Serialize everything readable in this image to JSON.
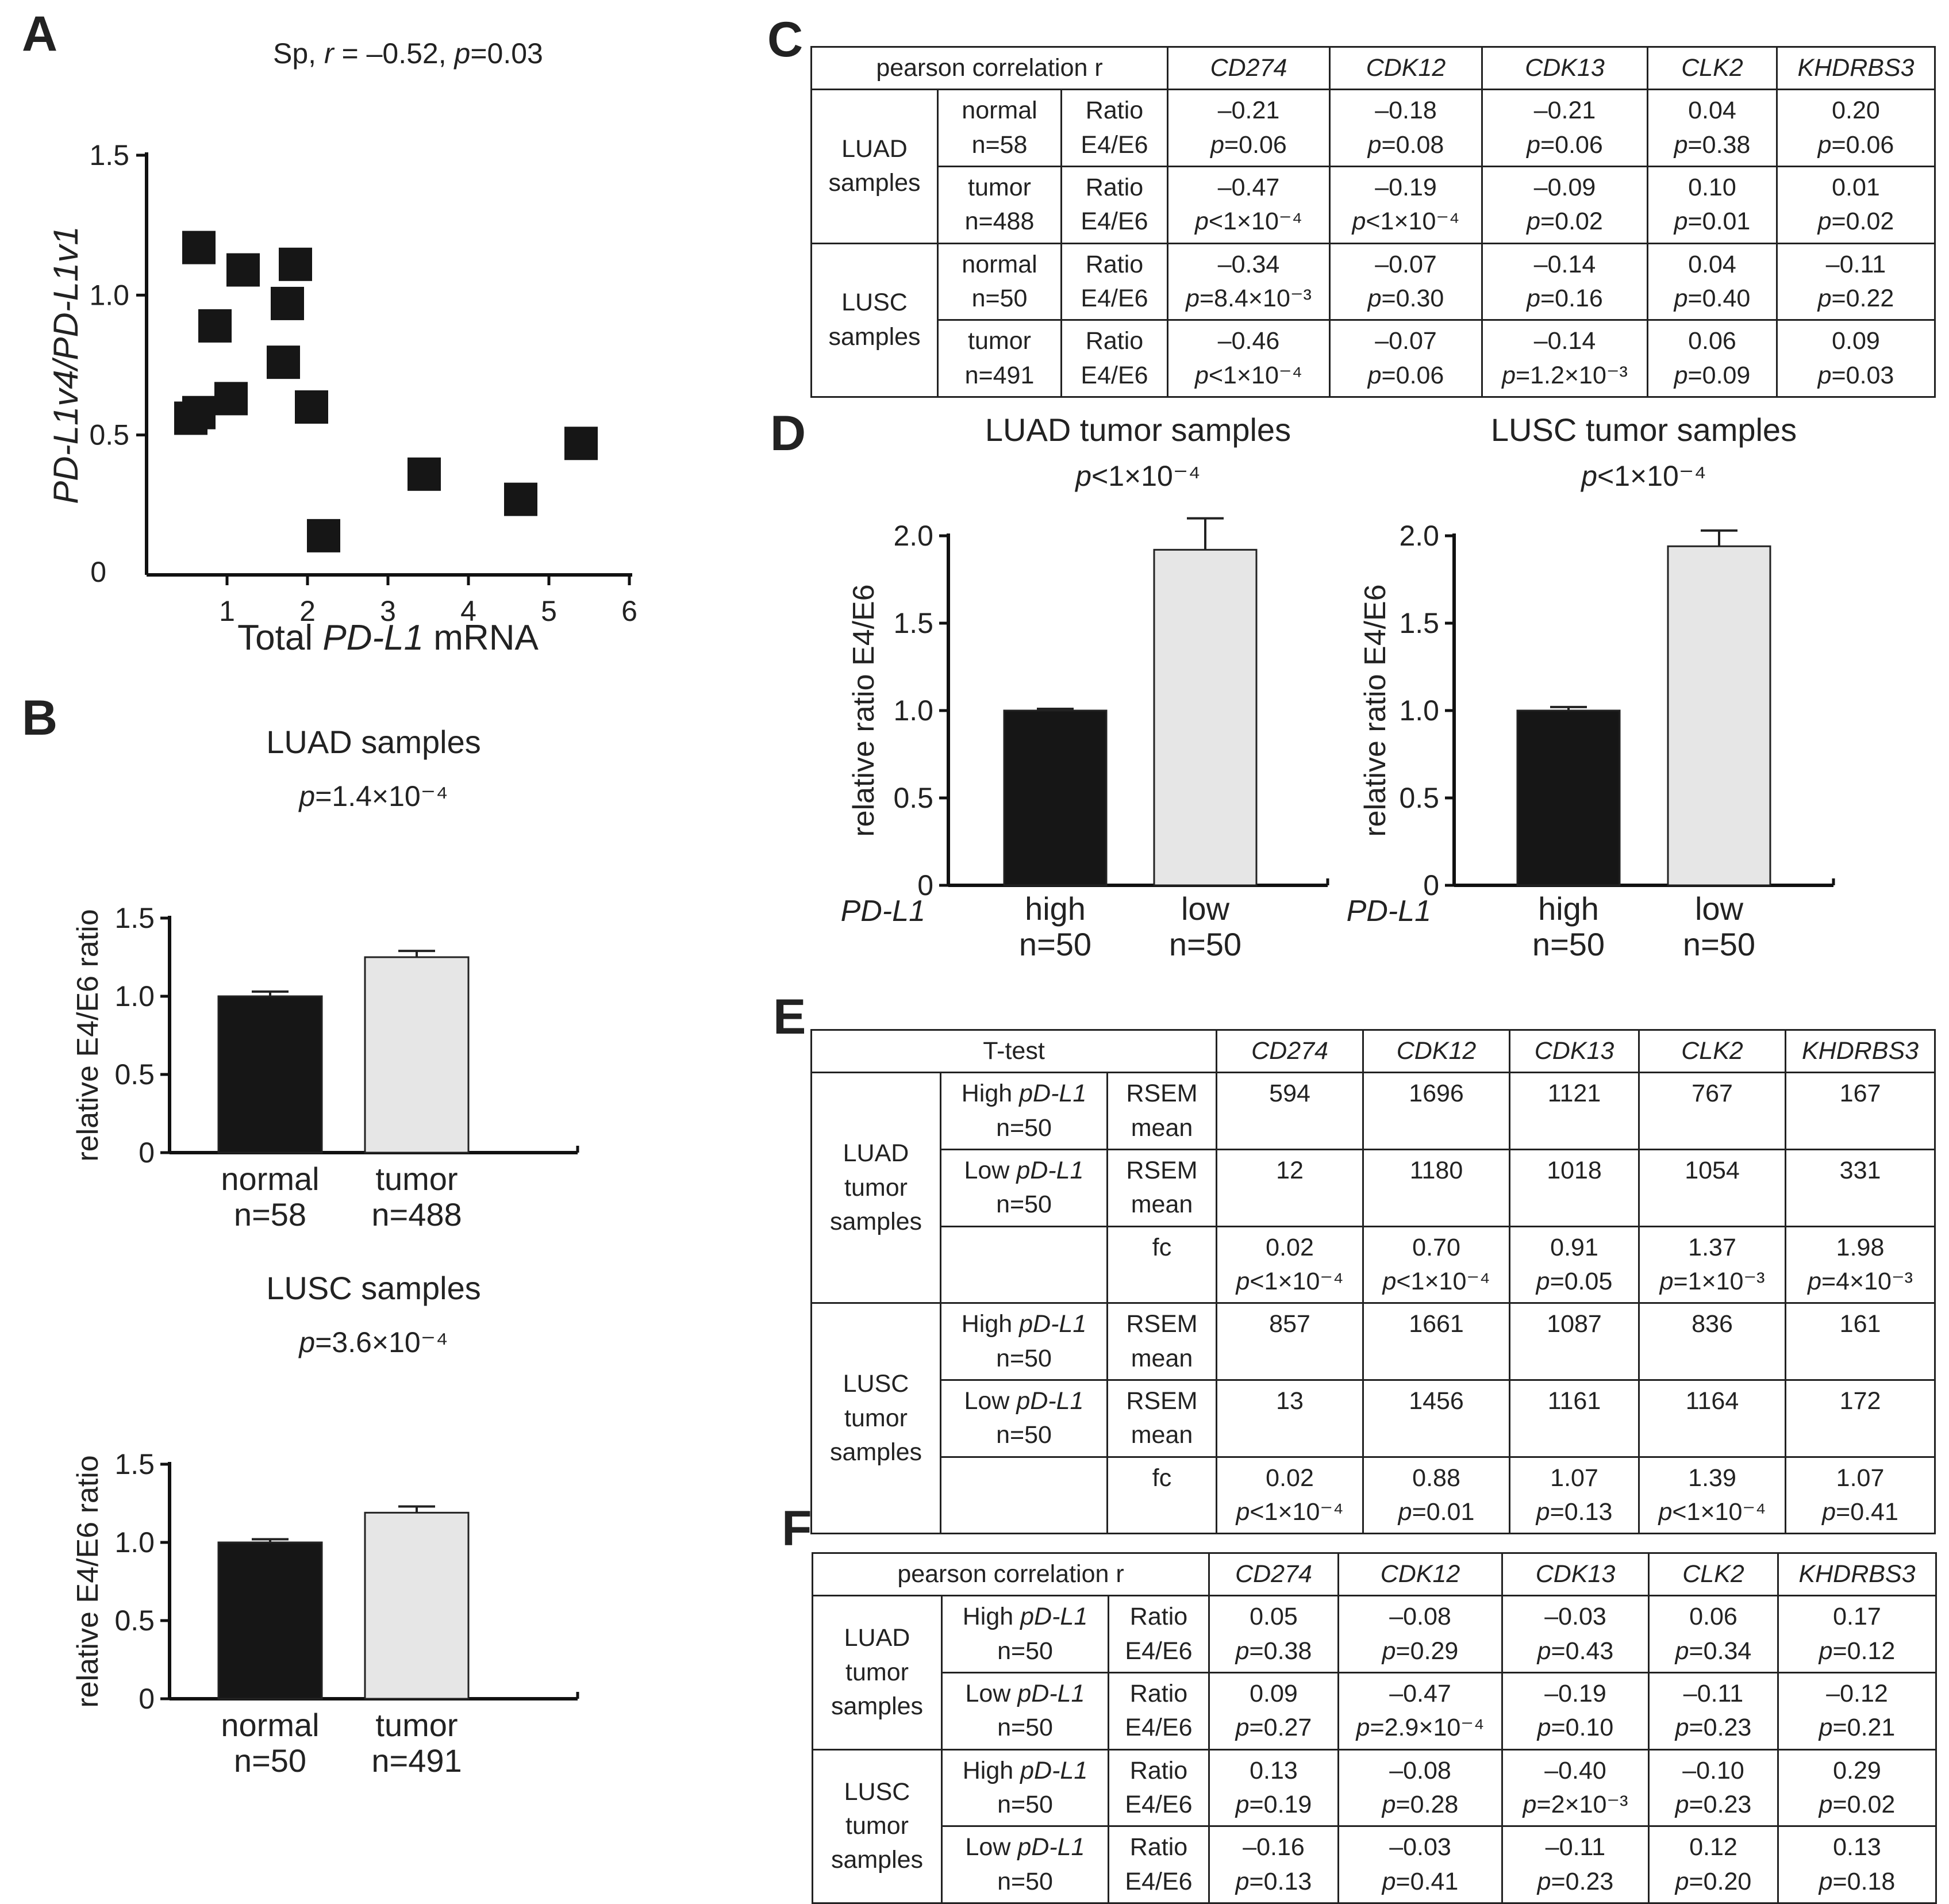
{
  "labels": {
    "A": "A",
    "B": "B",
    "C": "C",
    "D": "D",
    "E": "E",
    "F": "F"
  },
  "panel_A_annotation": {
    "prefix": "Sp, ",
    "r_sym": "r",
    "r_val": " = –0.52, ",
    "p_sym": "p",
    "p_val": "=0.03"
  },
  "chart_data": [
    {
      "id": "A",
      "type": "scatter",
      "title": "Sp, r = –0.52, p=0.03",
      "xlabel": "Total PD-L1 mRNA",
      "ylabel": "PD-L1v4/PD-L1v1",
      "xlim": [
        0,
        6
      ],
      "ylim": [
        0,
        1.5
      ],
      "xticks": [
        1,
        2,
        3,
        4,
        5,
        6
      ],
      "yticks": [
        0,
        0.5,
        1.0,
        1.5
      ],
      "ytick_labels": [
        "0",
        "0.5",
        "1.0",
        "1.5"
      ],
      "points": [
        {
          "x": 0.65,
          "y": 1.17
        },
        {
          "x": 1.2,
          "y": 1.09
        },
        {
          "x": 1.85,
          "y": 1.11
        },
        {
          "x": 1.75,
          "y": 0.97
        },
        {
          "x": 0.85,
          "y": 0.89
        },
        {
          "x": 1.7,
          "y": 0.76
        },
        {
          "x": 0.65,
          "y": 0.58
        },
        {
          "x": 0.55,
          "y": 0.56
        },
        {
          "x": 1.05,
          "y": 0.63
        },
        {
          "x": 2.05,
          "y": 0.6
        },
        {
          "x": 3.45,
          "y": 0.36
        },
        {
          "x": 4.65,
          "y": 0.27
        },
        {
          "x": 5.4,
          "y": 0.47
        },
        {
          "x": 2.2,
          "y": 0.14
        }
      ]
    },
    {
      "id": "B1",
      "type": "bar",
      "title": "LUAD samples",
      "pvalue": "p=1.4×10⁻⁴",
      "ylabel": "relative E4/E6 ratio",
      "ylim": [
        0,
        1.5
      ],
      "yticks": [
        0,
        0.5,
        1.0,
        1.5
      ],
      "ytick_labels": [
        "0",
        "0.5",
        "1.0",
        "1.5"
      ],
      "categories": [
        "normal",
        "tumor"
      ],
      "category_n": [
        "n=58",
        "n=488"
      ],
      "values": [
        1.0,
        1.25
      ],
      "errors": [
        0.03,
        0.04
      ],
      "colors": [
        "#161616",
        "#e6e6e6"
      ]
    },
    {
      "id": "B2",
      "type": "bar",
      "title": "LUSC samples",
      "pvalue": "p=3.6×10⁻⁴",
      "ylabel": "relative E4/E6 ratio",
      "ylim": [
        0,
        1.5
      ],
      "yticks": [
        0,
        0.5,
        1.0,
        1.5
      ],
      "ytick_labels": [
        "0",
        "0.5",
        "1.0",
        "1.5"
      ],
      "categories": [
        "normal",
        "tumor"
      ],
      "category_n": [
        "n=50",
        "n=491"
      ],
      "values": [
        1.0,
        1.19
      ],
      "errors": [
        0.02,
        0.04
      ],
      "colors": [
        "#161616",
        "#e6e6e6"
      ]
    },
    {
      "id": "D1",
      "type": "bar",
      "title": "LUAD tumor samples",
      "pvalue": "p<1×10⁻⁴",
      "ylabel": "relative ratio E4/E6",
      "ylim": [
        0,
        2.0
      ],
      "yticks": [
        0,
        0.5,
        1.0,
        1.5,
        2.0
      ],
      "ytick_labels": [
        "0",
        "0.5",
        "1.0",
        "1.5",
        "2.0"
      ],
      "group_label": "PD-L1",
      "categories": [
        "high",
        "low"
      ],
      "category_n": [
        "n=50",
        "n=50"
      ],
      "values": [
        1.0,
        1.92
      ],
      "errors": [
        0.01,
        0.18
      ],
      "colors": [
        "#161616",
        "#e6e6e6"
      ]
    },
    {
      "id": "D2",
      "type": "bar",
      "title": "LUSC tumor samples",
      "pvalue": "p<1×10⁻⁴",
      "ylabel": "relative ratio E4/E6",
      "ylim": [
        0,
        2.0
      ],
      "yticks": [
        0,
        0.5,
        1.0,
        1.5,
        2.0
      ],
      "ytick_labels": [
        "0",
        "0.5",
        "1.0",
        "1.5",
        "2.0"
      ],
      "group_label": "PD-L1",
      "categories": [
        "high",
        "low"
      ],
      "category_n": [
        "n=50",
        "n=50"
      ],
      "values": [
        1.0,
        1.94
      ],
      "errors": [
        0.02,
        0.09
      ],
      "colors": [
        "#161616",
        "#e6e6e6"
      ]
    }
  ],
  "tables": {
    "C": {
      "header": "pearson correlation r",
      "genes": [
        "CD274",
        "CDK12",
        "CDK13",
        "CLK2",
        "KHDRBS3"
      ],
      "groups": [
        {
          "name": [
            "LUAD",
            "samples"
          ],
          "rows": [
            {
              "cond": [
                "normal",
                "n=58"
              ],
              "measure": [
                "Ratio",
                "E4/E6"
              ],
              "cells": [
                {
                  "v": "–0.21",
                  "pv": "=0.06"
                },
                {
                  "v": "–0.18",
                  "pv": "=0.08"
                },
                {
                  "v": "–0.21",
                  "pv": "=0.06"
                },
                {
                  "v": "0.04",
                  "pv": "=0.38"
                },
                {
                  "v": "0.20",
                  "pv": "=0.06"
                }
              ]
            },
            {
              "cond": [
                "tumor",
                "n=488"
              ],
              "measure": [
                "Ratio",
                "E4/E6"
              ],
              "cells": [
                {
                  "v": "–0.47",
                  "pv": "<1×10⁻⁴"
                },
                {
                  "v": "–0.19",
                  "pv": "<1×10⁻⁴"
                },
                {
                  "v": "–0.09",
                  "pv": "=0.02"
                },
                {
                  "v": "0.10",
                  "pv": "=0.01"
                },
                {
                  "v": "0.01",
                  "pv": "=0.02"
                }
              ]
            }
          ]
        },
        {
          "name": [
            "LUSC",
            "samples"
          ],
          "rows": [
            {
              "cond": [
                "normal",
                "n=50"
              ],
              "measure": [
                "Ratio",
                "E4/E6"
              ],
              "cells": [
                {
                  "v": "–0.34",
                  "pv": "=8.4×10⁻³"
                },
                {
                  "v": "–0.07",
                  "pv": "=0.30"
                },
                {
                  "v": "–0.14",
                  "pv": "=0.16"
                },
                {
                  "v": "0.04",
                  "pv": "=0.40"
                },
                {
                  "v": "–0.11",
                  "pv": "=0.22"
                }
              ]
            },
            {
              "cond": [
                "tumor",
                "n=491"
              ],
              "measure": [
                "Ratio",
                "E4/E6"
              ],
              "cells": [
                {
                  "v": "–0.46",
                  "pv": "<1×10⁻⁴"
                },
                {
                  "v": "–0.07",
                  "pv": "=0.06"
                },
                {
                  "v": "–0.14",
                  "pv": "=1.2×10⁻³"
                },
                {
                  "v": "0.06",
                  "pv": "=0.09"
                },
                {
                  "v": "0.09",
                  "pv": "=0.03"
                }
              ]
            }
          ]
        }
      ]
    },
    "E": {
      "header": "T-test",
      "genes": [
        "CD274",
        "CDK12",
        "CDK13",
        "CLK2",
        "KHDRBS3"
      ],
      "groups": [
        {
          "name": [
            "LUAD",
            "tumor",
            "samples"
          ],
          "rows": [
            {
              "cond": [
                "High ",
                "pD-L1",
                "n=50"
              ],
              "measure": [
                "RSEM",
                "mean"
              ],
              "cells": [
                {
                  "v": "594"
                },
                {
                  "v": "1696"
                },
                {
                  "v": "1121"
                },
                {
                  "v": "767"
                },
                {
                  "v": "167"
                }
              ]
            },
            {
              "cond": [
                "Low ",
                "pD-L1",
                "n=50"
              ],
              "measure": [
                "RSEM",
                "mean"
              ],
              "cells": [
                {
                  "v": "12"
                },
                {
                  "v": "1180"
                },
                {
                  "v": "1018"
                },
                {
                  "v": "1054"
                },
                {
                  "v": "331"
                }
              ]
            },
            {
              "cond": null,
              "measure": [
                "fc"
              ],
              "cells": [
                {
                  "v": "0.02",
                  "pv": "<1×10⁻⁴"
                },
                {
                  "v": "0.70",
                  "pv": "<1×10⁻⁴"
                },
                {
                  "v": "0.91",
                  "pv": "=0.05"
                },
                {
                  "v": "1.37",
                  "pv": "=1×10⁻³"
                },
                {
                  "v": "1.98",
                  "pv": "=4×10⁻³"
                }
              ]
            }
          ]
        },
        {
          "name": [
            "LUSC",
            "tumor",
            "samples"
          ],
          "rows": [
            {
              "cond": [
                "High ",
                "pD-L1",
                "n=50"
              ],
              "measure": [
                "RSEM",
                "mean"
              ],
              "cells": [
                {
                  "v": "857"
                },
                {
                  "v": "1661"
                },
                {
                  "v": "1087"
                },
                {
                  "v": "836"
                },
                {
                  "v": "161"
                }
              ]
            },
            {
              "cond": [
                "Low ",
                "pD-L1",
                "n=50"
              ],
              "measure": [
                "RSEM",
                "mean"
              ],
              "cells": [
                {
                  "v": "13"
                },
                {
                  "v": "1456"
                },
                {
                  "v": "1161"
                },
                {
                  "v": "1164"
                },
                {
                  "v": "172"
                }
              ]
            },
            {
              "cond": null,
              "measure": [
                "fc"
              ],
              "cells": [
                {
                  "v": "0.02",
                  "pv": "<1×10⁻⁴"
                },
                {
                  "v": "0.88",
                  "pv": "=0.01"
                },
                {
                  "v": "1.07",
                  "pv": "=0.13"
                },
                {
                  "v": "1.39",
                  "pv": "<1×10⁻⁴"
                },
                {
                  "v": "1.07",
                  "pv": "=0.41"
                }
              ]
            }
          ]
        }
      ]
    },
    "F": {
      "header": "pearson correlation r",
      "genes": [
        "CD274",
        "CDK12",
        "CDK13",
        "CLK2",
        "KHDRBS3"
      ],
      "groups": [
        {
          "name": [
            "LUAD",
            "tumor",
            "samples"
          ],
          "rows": [
            {
              "cond": [
                "High ",
                "pD-L1",
                "n=50"
              ],
              "measure": [
                "Ratio",
                "E4/E6"
              ],
              "cells": [
                {
                  "v": "0.05",
                  "pv": "=0.38"
                },
                {
                  "v": "–0.08",
                  "pv": "=0.29"
                },
                {
                  "v": "–0.03",
                  "pv": "=0.43"
                },
                {
                  "v": "0.06",
                  "pv": "=0.34"
                },
                {
                  "v": "0.17",
                  "pv": "=0.12"
                }
              ]
            },
            {
              "cond": [
                "Low ",
                "pD-L1",
                "n=50"
              ],
              "measure": [
                "Ratio",
                "E4/E6"
              ],
              "cells": [
                {
                  "v": "0.09",
                  "pv": "=0.27"
                },
                {
                  "v": "–0.47",
                  "pv": "=2.9×10⁻⁴"
                },
                {
                  "v": "–0.19",
                  "pv": "=0.10"
                },
                {
                  "v": "–0.11",
                  "pv": "=0.23"
                },
                {
                  "v": "–0.12",
                  "pv": "=0.21"
                }
              ]
            }
          ]
        },
        {
          "name": [
            "LUSC",
            "tumor",
            "samples"
          ],
          "rows": [
            {
              "cond": [
                "High ",
                "pD-L1",
                "n=50"
              ],
              "measure": [
                "Ratio",
                "E4/E6"
              ],
              "cells": [
                {
                  "v": "0.13",
                  "pv": "=0.19"
                },
                {
                  "v": "–0.08",
                  "pv": "=0.28"
                },
                {
                  "v": "–0.40",
                  "pv": "=2×10⁻³"
                },
                {
                  "v": "–0.10",
                  "pv": "=0.23"
                },
                {
                  "v": "0.29",
                  "pv": "=0.02"
                }
              ]
            },
            {
              "cond": [
                "Low ",
                "pD-L1",
                "n=50"
              ],
              "measure": [
                "Ratio",
                "E4/E6"
              ],
              "cells": [
                {
                  "v": "–0.16",
                  "pv": "=0.13"
                },
                {
                  "v": "–0.03",
                  "pv": "=0.41"
                },
                {
                  "v": "–0.11",
                  "pv": "=0.23"
                },
                {
                  "v": "0.12",
                  "pv": "=0.20"
                },
                {
                  "v": "0.13",
                  "pv": "=0.18"
                }
              ]
            }
          ]
        }
      ]
    }
  }
}
